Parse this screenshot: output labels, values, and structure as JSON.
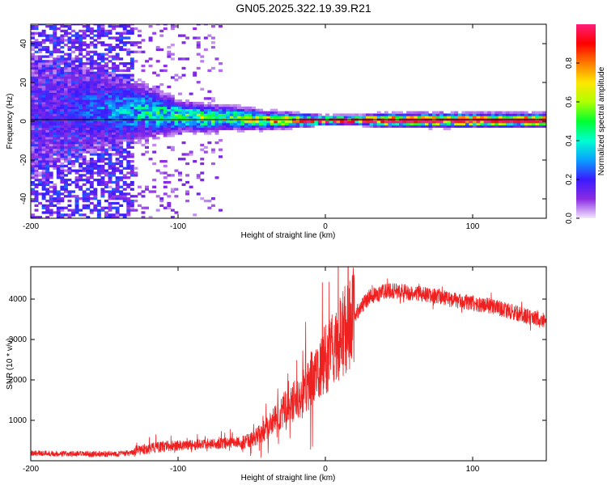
{
  "figure_title": "GN05.2025.322.19.39.R21",
  "chart_data": [
    {
      "type": "heatmap",
      "title": "GN05.2025.322.19.39.R21",
      "xlabel": "Height of straight line (km)",
      "ylabel": "Frequency (Hz)",
      "xlim": [
        -200,
        150
      ],
      "ylim": [
        -50,
        50
      ],
      "x_ticks": [
        -200,
        -100,
        0,
        100
      ],
      "y_ticks": [
        -40,
        -20,
        0,
        20,
        40
      ],
      "colorbar": {
        "label": "Normalized spectral amplitude",
        "range": [
          0,
          1
        ],
        "ticks": [
          "0.0",
          "0.2",
          "0.4",
          "0.6",
          "0.8"
        ],
        "colors": [
          "#f4e6ff",
          "#8a2be2",
          "#3a1bff",
          "#0aa0ff",
          "#00ffd0",
          "#00ff30",
          "#b0ff00",
          "#ffe600",
          "#ff7a00",
          "#ff0000",
          "#ff1e78"
        ]
      },
      "ridge": {
        "x": [
          -200,
          -180,
          -160,
          -140,
          -120,
          -100,
          -80,
          -60,
          -40,
          -20,
          0,
          20,
          40,
          60,
          80,
          100,
          120,
          150
        ],
        "center_freq": [
          3,
          5,
          6,
          5,
          4,
          2,
          1,
          1,
          0,
          0,
          0,
          0,
          0,
          0,
          0,
          0,
          0,
          0
        ],
        "width_hz": [
          40,
          30,
          22,
          16,
          12,
          7,
          6,
          5,
          4,
          3,
          2,
          2,
          3,
          3,
          3,
          3,
          3,
          3
        ],
        "amplitude": [
          0.12,
          0.15,
          0.22,
          0.3,
          0.38,
          0.45,
          0.5,
          0.55,
          0.65,
          0.8,
          0.95,
          0.95,
          0.95,
          0.93,
          0.95,
          0.93,
          0.92,
          0.9
        ]
      }
    },
    {
      "type": "line",
      "xlabel": "Height of straight line (km)",
      "ylabel": "SNR (10 * v/v)",
      "xlim": [
        -200,
        150
      ],
      "ylim": [
        0,
        4800
      ],
      "x_ticks": [
        -200,
        -100,
        0,
        100
      ],
      "y_ticks": [
        1000,
        2000,
        3000,
        4000
      ],
      "series": [
        {
          "name": "SNR",
          "color": "#ee2020",
          "x": [
            -200,
            -180,
            -160,
            -140,
            -130,
            -120,
            -110,
            -100,
            -90,
            -80,
            -70,
            -60,
            -50,
            -45,
            -40,
            -35,
            -30,
            -25,
            -20,
            -15,
            -10,
            -5,
            0,
            5,
            10,
            15,
            20,
            25,
            30,
            40,
            50,
            60,
            70,
            80,
            90,
            100,
            110,
            120,
            130,
            140,
            150
          ],
          "y": [
            180,
            160,
            150,
            160,
            180,
            250,
            300,
            330,
            340,
            350,
            380,
            420,
            520,
            650,
            800,
            1000,
            1200,
            1350,
            1500,
            1700,
            2000,
            2200,
            2500,
            2800,
            3100,
            3300,
            3600,
            3850,
            4050,
            4200,
            4200,
            4150,
            4100,
            4050,
            3950,
            3900,
            3850,
            3750,
            3650,
            3550,
            3450
          ]
        }
      ]
    }
  ]
}
